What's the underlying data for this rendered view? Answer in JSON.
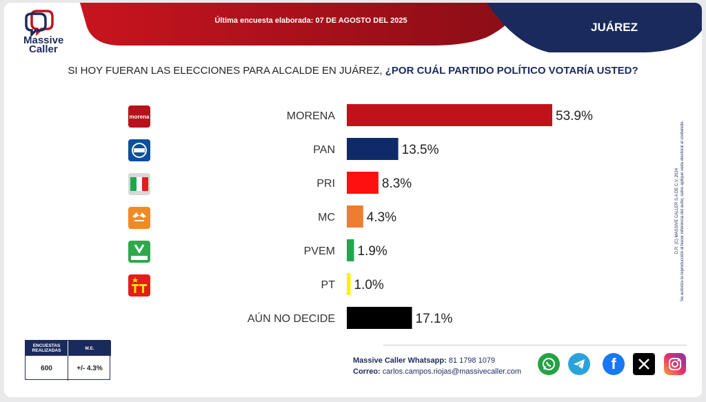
{
  "brand": {
    "name_line1": "Massive",
    "name_line2": "Caller"
  },
  "header": {
    "poll_date": "Última encuesta elaborada: 07 DE AGOSTO DEL 2025",
    "city": "JUÁREZ"
  },
  "question": {
    "part1": "SI HOY FUERAN LAS ELECCIONES PARA ALCALDE EN JUÁREZ, ",
    "part2": "¿POR CUÁL PARTIDO POLÍTICO VOTARÍA USTED?"
  },
  "chart_data": {
    "type": "bar",
    "orientation": "horizontal",
    "categories": [
      "MORENA",
      "PAN",
      "PRI",
      "MC",
      "PVEM",
      "PT",
      "AÚN NO DECIDE"
    ],
    "values": [
      53.9,
      13.5,
      8.3,
      4.3,
      1.9,
      1.0,
      17.1
    ],
    "value_labels": [
      "53.9%",
      "13.5%",
      "8.3%",
      "4.3%",
      "1.9%",
      "1.0%",
      "17.1%"
    ],
    "colors": [
      "#c1121c",
      "#0e2a68",
      "#ff1010",
      "#ef7d2f",
      "#1fa84b",
      "#fff200",
      "#000000"
    ],
    "xlim": [
      0,
      60
    ]
  },
  "party_logos": [
    {
      "icon": "morena-logo",
      "text": "morena",
      "color": "#b5121b"
    },
    {
      "icon": "pan-logo",
      "text": "PAN",
      "color": "#0d4f9e"
    },
    {
      "icon": "pri-logo",
      "text": "PRI",
      "color": "#d8d8d8"
    },
    {
      "icon": "mc-logo",
      "text": "MC",
      "color": "#f08a24"
    },
    {
      "icon": "pvem-logo",
      "text": "VERDE",
      "color": "#2ea84a"
    },
    {
      "icon": "pt-logo",
      "text": "PT",
      "color": "#e31d1a"
    }
  ],
  "side_note": {
    "line1": "D.R. (C) MASSIVE CALLER S.A DE C.V. 2024",
    "line2": "Se autoriza la reproducción al hacer referencia del autor, salvo aplique veda electoral al contenido."
  },
  "stats": {
    "surveys_label": "ENCUESTAS REALIZADAS",
    "surveys_value": "600",
    "me_label": "M.E.",
    "me_value": "+/- 4.3%"
  },
  "contact": {
    "whatsapp_label": "Massive Caller Whatsapp:",
    "whatsapp_value": "81 1798 1079",
    "email_label": "Correo:",
    "email_value": "carlos.campos.riojas@massivecaller.com"
  },
  "social_icons": [
    "whatsapp-icon",
    "telegram-icon",
    "facebook-icon",
    "x-icon",
    "instagram-icon"
  ],
  "colors": {
    "navy": "#1b2a5c",
    "red": "#c1121c"
  }
}
